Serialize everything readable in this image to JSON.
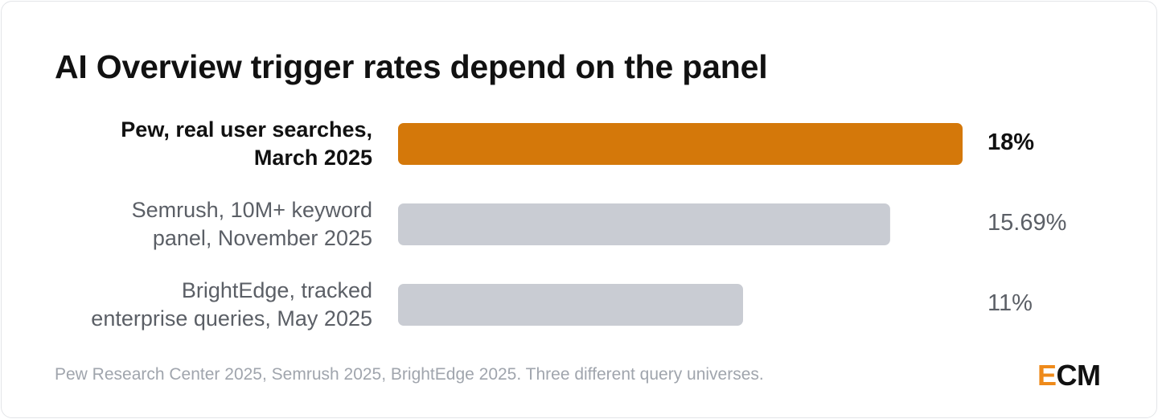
{
  "chart_data": {
    "type": "bar",
    "orientation": "horizontal",
    "title": "AI Overview trigger rates depend on the panel",
    "categories": [
      "Pew, real user searches, March 2025",
      "Semrush, 10M+ keyword panel, November 2025",
      "BrightEdge, tracked enterprise queries, May 2025"
    ],
    "category_lines": [
      [
        "Pew, real user searches,",
        "March 2025"
      ],
      [
        "Semrush, 10M+ keyword",
        "panel, November 2025"
      ],
      [
        "BrightEdge, tracked",
        "enterprise queries, May 2025"
      ]
    ],
    "values": [
      18,
      15.69,
      11
    ],
    "value_labels": [
      "18%",
      "15.69%",
      "11%"
    ],
    "highlight_index": 0,
    "xlim": [
      0,
      18
    ],
    "grid": false,
    "colors": {
      "highlight": "#d4780a",
      "other": "#c9ccd3"
    }
  },
  "footer": {
    "source": "Pew Research Center 2025, Semrush 2025, BrightEdge 2025. Three different query universes.",
    "logo_first": "E",
    "logo_rest": "CM"
  }
}
